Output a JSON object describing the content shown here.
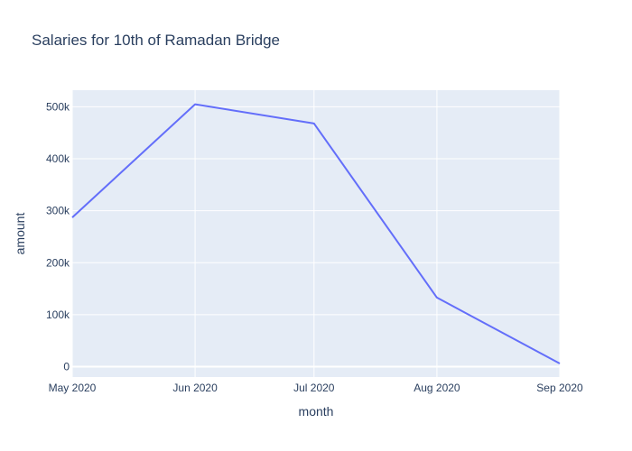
{
  "chart_data": {
    "type": "line",
    "title": "Salaries for 10th of Ramadan Bridge",
    "xlabel": "month",
    "ylabel": "amount",
    "x": [
      "2020-05-01",
      "2020-06-01",
      "2020-07-01",
      "2020-08-01",
      "2020-09-01"
    ],
    "x_tick_labels": [
      "May 2020",
      "Jun 2020",
      "Jul 2020",
      "Aug 2020",
      "Sep 2020"
    ],
    "series": [
      {
        "values": [
          287000,
          505000,
          468000,
          133000,
          6000
        ]
      }
    ],
    "y_ticks": [
      0,
      100000,
      200000,
      300000,
      400000,
      500000
    ],
    "y_tick_labels": [
      "0",
      "100k",
      "200k",
      "300k",
      "400k",
      "500k"
    ],
    "ylim": [
      -20000,
      532000
    ],
    "grid": true,
    "legend": "none",
    "colors": {
      "line": "#636efa",
      "plot_bg": "#e5ecf6",
      "grid": "#ffffff",
      "text": "#2a3f5f"
    }
  }
}
